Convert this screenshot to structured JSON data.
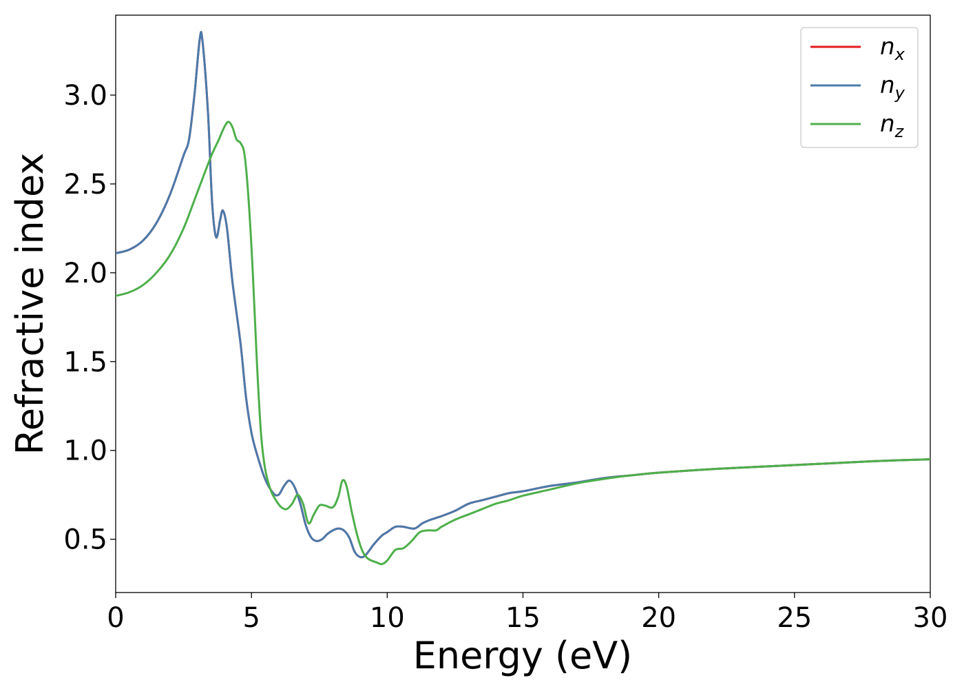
{
  "chart_data": {
    "type": "line",
    "title": "",
    "xlabel": "Energy (eV)",
    "ylabel": "Refractive index",
    "xlim": [
      0,
      30
    ],
    "ylim": [
      0.2,
      3.45
    ],
    "grid": false,
    "legend_position": "top-right",
    "x_ticks": [
      0,
      5,
      10,
      15,
      20,
      25,
      30
    ],
    "x_tick_labels": [
      "0",
      "5",
      "10",
      "15",
      "20",
      "25",
      "30"
    ],
    "y_ticks": [
      0.5,
      1.0,
      1.5,
      2.0,
      2.5,
      3.0
    ],
    "y_tick_labels": [
      "0.5",
      "1.0",
      "1.5",
      "2.0",
      "2.5",
      "3.0"
    ],
    "series": [
      {
        "name": "n_x",
        "legend_base": "n",
        "legend_sub": "x",
        "color": "#e41a1c",
        "points": [
          [
            0,
            2.11
          ],
          [
            0.5,
            2.13
          ],
          [
            1.0,
            2.18
          ],
          [
            1.5,
            2.28
          ],
          [
            2.0,
            2.44
          ],
          [
            2.5,
            2.66
          ],
          [
            2.7,
            2.75
          ],
          [
            2.9,
            3.0
          ],
          [
            3.1,
            3.32
          ],
          [
            3.2,
            3.3
          ],
          [
            3.4,
            2.9
          ],
          [
            3.55,
            2.4
          ],
          [
            3.7,
            2.2
          ],
          [
            3.85,
            2.3
          ],
          [
            3.95,
            2.35
          ],
          [
            4.1,
            2.25
          ],
          [
            4.3,
            1.95
          ],
          [
            4.6,
            1.6
          ],
          [
            4.8,
            1.3
          ],
          [
            5.0,
            1.1
          ],
          [
            5.2,
            0.98
          ],
          [
            5.5,
            0.84
          ],
          [
            5.8,
            0.76
          ],
          [
            6.0,
            0.75
          ],
          [
            6.2,
            0.8
          ],
          [
            6.4,
            0.83
          ],
          [
            6.6,
            0.79
          ],
          [
            6.8,
            0.7
          ],
          [
            7.0,
            0.58
          ],
          [
            7.2,
            0.51
          ],
          [
            7.4,
            0.49
          ],
          [
            7.6,
            0.5
          ],
          [
            7.8,
            0.53
          ],
          [
            8.0,
            0.55
          ],
          [
            8.2,
            0.56
          ],
          [
            8.4,
            0.55
          ],
          [
            8.6,
            0.51
          ],
          [
            8.8,
            0.43
          ],
          [
            9.0,
            0.4
          ],
          [
            9.2,
            0.41
          ],
          [
            9.5,
            0.47
          ],
          [
            9.8,
            0.52
          ],
          [
            10.0,
            0.54
          ],
          [
            10.3,
            0.57
          ],
          [
            10.6,
            0.57
          ],
          [
            11.0,
            0.56
          ],
          [
            11.3,
            0.59
          ],
          [
            11.6,
            0.61
          ],
          [
            12.0,
            0.63
          ],
          [
            12.5,
            0.66
          ],
          [
            13.0,
            0.7
          ],
          [
            13.5,
            0.72
          ],
          [
            14.0,
            0.74
          ],
          [
            14.5,
            0.76
          ],
          [
            15.0,
            0.77
          ],
          [
            16.0,
            0.8
          ],
          [
            17.0,
            0.82
          ],
          [
            18.0,
            0.845
          ],
          [
            19.0,
            0.86
          ],
          [
            20.0,
            0.875
          ],
          [
            22.0,
            0.895
          ],
          [
            24.0,
            0.91
          ],
          [
            26.0,
            0.925
          ],
          [
            28.0,
            0.94
          ],
          [
            30.0,
            0.95
          ]
        ]
      },
      {
        "name": "n_y",
        "legend_base": "n",
        "legend_sub": "y",
        "color": "#4a7aab",
        "points": [
          [
            0,
            2.11
          ],
          [
            0.5,
            2.13
          ],
          [
            1.0,
            2.18
          ],
          [
            1.5,
            2.28
          ],
          [
            2.0,
            2.44
          ],
          [
            2.5,
            2.66
          ],
          [
            2.7,
            2.75
          ],
          [
            2.9,
            3.0
          ],
          [
            3.1,
            3.32
          ],
          [
            3.2,
            3.3
          ],
          [
            3.4,
            2.9
          ],
          [
            3.55,
            2.4
          ],
          [
            3.7,
            2.2
          ],
          [
            3.85,
            2.3
          ],
          [
            3.95,
            2.35
          ],
          [
            4.1,
            2.25
          ],
          [
            4.3,
            1.95
          ],
          [
            4.6,
            1.6
          ],
          [
            4.8,
            1.3
          ],
          [
            5.0,
            1.1
          ],
          [
            5.2,
            0.98
          ],
          [
            5.5,
            0.84
          ],
          [
            5.8,
            0.76
          ],
          [
            6.0,
            0.75
          ],
          [
            6.2,
            0.8
          ],
          [
            6.4,
            0.83
          ],
          [
            6.6,
            0.79
          ],
          [
            6.8,
            0.7
          ],
          [
            7.0,
            0.58
          ],
          [
            7.2,
            0.51
          ],
          [
            7.4,
            0.49
          ],
          [
            7.6,
            0.5
          ],
          [
            7.8,
            0.53
          ],
          [
            8.0,
            0.55
          ],
          [
            8.2,
            0.56
          ],
          [
            8.4,
            0.55
          ],
          [
            8.6,
            0.51
          ],
          [
            8.8,
            0.43
          ],
          [
            9.0,
            0.4
          ],
          [
            9.2,
            0.41
          ],
          [
            9.5,
            0.47
          ],
          [
            9.8,
            0.52
          ],
          [
            10.0,
            0.54
          ],
          [
            10.3,
            0.57
          ],
          [
            10.6,
            0.57
          ],
          [
            11.0,
            0.56
          ],
          [
            11.3,
            0.59
          ],
          [
            11.6,
            0.61
          ],
          [
            12.0,
            0.63
          ],
          [
            12.5,
            0.66
          ],
          [
            13.0,
            0.7
          ],
          [
            13.5,
            0.72
          ],
          [
            14.0,
            0.74
          ],
          [
            14.5,
            0.76
          ],
          [
            15.0,
            0.77
          ],
          [
            16.0,
            0.8
          ],
          [
            17.0,
            0.82
          ],
          [
            18.0,
            0.845
          ],
          [
            19.0,
            0.86
          ],
          [
            20.0,
            0.875
          ],
          [
            22.0,
            0.895
          ],
          [
            24.0,
            0.91
          ],
          [
            26.0,
            0.925
          ],
          [
            28.0,
            0.94
          ],
          [
            30.0,
            0.95
          ]
        ]
      },
      {
        "name": "n_z",
        "legend_base": "n",
        "legend_sub": "z",
        "color": "#4daf4a",
        "points": [
          [
            0,
            1.87
          ],
          [
            0.5,
            1.89
          ],
          [
            1.0,
            1.93
          ],
          [
            1.5,
            2.0
          ],
          [
            2.0,
            2.1
          ],
          [
            2.5,
            2.25
          ],
          [
            3.0,
            2.45
          ],
          [
            3.5,
            2.65
          ],
          [
            3.8,
            2.75
          ],
          [
            4.0,
            2.82
          ],
          [
            4.15,
            2.85
          ],
          [
            4.3,
            2.82
          ],
          [
            4.45,
            2.75
          ],
          [
            4.6,
            2.73
          ],
          [
            4.75,
            2.66
          ],
          [
            4.9,
            2.4
          ],
          [
            5.05,
            2.0
          ],
          [
            5.2,
            1.5
          ],
          [
            5.35,
            1.1
          ],
          [
            5.5,
            0.9
          ],
          [
            5.7,
            0.78
          ],
          [
            5.9,
            0.72
          ],
          [
            6.1,
            0.68
          ],
          [
            6.3,
            0.67
          ],
          [
            6.5,
            0.7
          ],
          [
            6.7,
            0.75
          ],
          [
            6.9,
            0.7
          ],
          [
            7.1,
            0.59
          ],
          [
            7.3,
            0.64
          ],
          [
            7.5,
            0.69
          ],
          [
            7.7,
            0.69
          ],
          [
            8.0,
            0.68
          ],
          [
            8.2,
            0.74
          ],
          [
            8.35,
            0.83
          ],
          [
            8.5,
            0.8
          ],
          [
            8.7,
            0.65
          ],
          [
            8.9,
            0.52
          ],
          [
            9.1,
            0.43
          ],
          [
            9.3,
            0.39
          ],
          [
            9.6,
            0.37
          ],
          [
            9.8,
            0.36
          ],
          [
            10.0,
            0.38
          ],
          [
            10.3,
            0.44
          ],
          [
            10.6,
            0.45
          ],
          [
            10.9,
            0.49
          ],
          [
            11.2,
            0.54
          ],
          [
            11.5,
            0.55
          ],
          [
            11.8,
            0.55
          ],
          [
            12.0,
            0.57
          ],
          [
            12.5,
            0.61
          ],
          [
            13.0,
            0.64
          ],
          [
            13.5,
            0.67
          ],
          [
            14.0,
            0.7
          ],
          [
            14.5,
            0.72
          ],
          [
            15.0,
            0.745
          ],
          [
            16.0,
            0.78
          ],
          [
            17.0,
            0.815
          ],
          [
            18.0,
            0.84
          ],
          [
            19.0,
            0.86
          ],
          [
            20.0,
            0.875
          ],
          [
            22.0,
            0.895
          ],
          [
            24.0,
            0.91
          ],
          [
            26.0,
            0.925
          ],
          [
            28.0,
            0.94
          ],
          [
            30.0,
            0.95
          ]
        ]
      }
    ]
  }
}
